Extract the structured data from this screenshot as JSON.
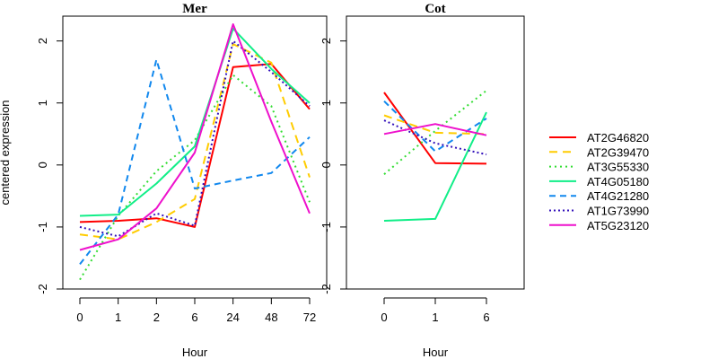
{
  "chart_data": {
    "type": "line",
    "ylabel": "centered expression",
    "ylim": [
      -2.0,
      2.4
    ],
    "yticks": [
      -2,
      -1,
      0,
      1,
      2
    ],
    "grid": false,
    "legend_position": "right",
    "panels": [
      {
        "title": "Mer",
        "xlabel": "Hour",
        "x": [
          "0",
          "1",
          "2",
          "6",
          "24",
          "48",
          "72"
        ],
        "series": [
          {
            "name": "AT2G46820",
            "color": "#ff0000",
            "dash": "solid",
            "values": [
              -0.92,
              -0.9,
              -0.86,
              -1.0,
              1.58,
              1.63,
              0.9
            ]
          },
          {
            "name": "AT2G39470",
            "color": "#ffcc00",
            "dash": "dashed-long",
            "values": [
              -1.12,
              -1.2,
              -0.92,
              -0.55,
              1.95,
              1.65,
              -0.2
            ]
          },
          {
            "name": "AT3G55330",
            "color": "#33dd33",
            "dash": "dotted",
            "values": [
              -1.85,
              -0.82,
              -0.1,
              0.4,
              1.45,
              0.95,
              -0.6
            ]
          },
          {
            "name": "AT4G05180",
            "color": "#11ee88",
            "dash": "solid",
            "values": [
              -0.82,
              -0.8,
              -0.3,
              0.3,
              2.2,
              1.55,
              1.0
            ]
          },
          {
            "name": "AT4G21280",
            "color": "#1188ee",
            "dash": "dashed",
            "values": [
              -1.6,
              -0.8,
              1.7,
              -0.38,
              -0.25,
              -0.13,
              0.45
            ]
          },
          {
            "name": "AT1G73990",
            "color": "#3311bb",
            "dash": "dotted-fine",
            "values": [
              -1.0,
              -1.15,
              -0.78,
              -0.98,
              2.0,
              1.5,
              0.95
            ]
          },
          {
            "name": "AT5G23120",
            "color": "#ee11cc",
            "dash": "solid",
            "values": [
              -1.37,
              -1.2,
              -0.7,
              0.2,
              2.27,
              0.7,
              -0.78
            ]
          }
        ]
      },
      {
        "title": "Cot",
        "xlabel": "Hour",
        "x": [
          "0",
          "1",
          "6"
        ],
        "series": [
          {
            "name": "AT2G46820",
            "color": "#ff0000",
            "dash": "solid",
            "values": [
              1.17,
              0.03,
              0.02
            ]
          },
          {
            "name": "AT2G39470",
            "color": "#ffcc00",
            "dash": "dashed-long",
            "values": [
              0.8,
              0.52,
              0.5
            ]
          },
          {
            "name": "AT3G55330",
            "color": "#33dd33",
            "dash": "dotted",
            "values": [
              -0.15,
              0.55,
              1.2
            ]
          },
          {
            "name": "AT4G05180",
            "color": "#11ee88",
            "dash": "solid",
            "values": [
              -0.9,
              -0.87,
              0.85
            ]
          },
          {
            "name": "AT4G21280",
            "color": "#1188ee",
            "dash": "dashed",
            "values": [
              1.03,
              0.22,
              0.75
            ]
          },
          {
            "name": "AT1G73990",
            "color": "#3311bb",
            "dash": "dotted-fine",
            "values": [
              0.72,
              0.35,
              0.17
            ]
          },
          {
            "name": "AT5G23120",
            "color": "#ee11cc",
            "dash": "solid",
            "values": [
              0.5,
              0.66,
              0.48
            ]
          }
        ]
      }
    ],
    "legend": [
      "AT2G46820",
      "AT2G39470",
      "AT3G55330",
      "AT4G05180",
      "AT4G21280",
      "AT1G73990",
      "AT5G23120"
    ]
  }
}
